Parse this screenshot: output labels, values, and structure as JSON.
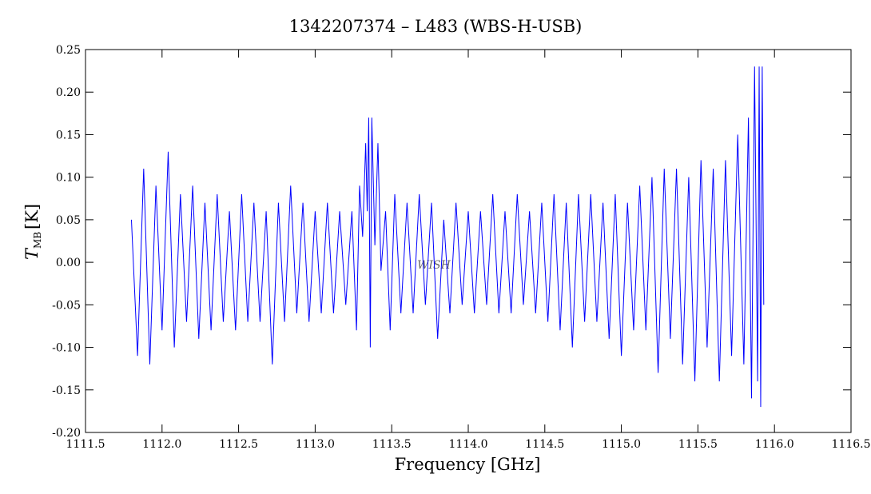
{
  "chart_data": {
    "type": "line",
    "title": "1342207374 – L483 (WBS-H-USB)",
    "xlabel": "Frequency [GHz]",
    "ylabel": {
      "main": "T",
      "sub": "MB",
      "unit": "[K]"
    },
    "watermark": "WISH",
    "xlim": [
      1111.5,
      1116.5
    ],
    "xticks": [
      1111.5,
      {
        "value": 1112,
        "label": "1112.0"
      },
      1112.5,
      {
        "value": 1113,
        "label": "1113.0"
      },
      1113.5,
      {
        "value": 1114,
        "label": "1114.0"
      },
      1114.5,
      {
        "value": 1115,
        "label": "1115.0"
      },
      1115.5,
      {
        "value": 1116,
        "label": "1116.0"
      },
      1116.5
    ],
    "ylim": [
      -0.2,
      0.25
    ],
    "yticks": [
      {
        "value": -0.2,
        "label": "-0.20"
      },
      -0.15,
      {
        "value": -0.1,
        "label": "-0.10"
      },
      -0.05,
      {
        "value": 0,
        "label": "0.00"
      },
      0.05,
      {
        "value": 0.1,
        "label": "0.10"
      },
      0.15,
      {
        "value": 0.2,
        "label": "0.20"
      },
      0.25
    ],
    "color": "#0000ff",
    "x": [
      1111.8,
      1111.84,
      1111.88,
      1111.92,
      1111.96,
      1112.0,
      1112.04,
      1112.08,
      1112.12,
      1112.16,
      1112.2,
      1112.24,
      1112.28,
      1112.32,
      1112.36,
      1112.4,
      1112.44,
      1112.48,
      1112.52,
      1112.56,
      1112.6,
      1112.64,
      1112.68,
      1112.72,
      1112.76,
      1112.8,
      1112.84,
      1112.88,
      1112.92,
      1112.96,
      1113.0,
      1113.04,
      1113.08,
      1113.12,
      1113.16,
      1113.2,
      1113.24,
      1113.27,
      1113.29,
      1113.31,
      1113.33,
      1113.34,
      1113.35,
      1113.36,
      1113.37,
      1113.39,
      1113.41,
      1113.43,
      1113.46,
      1113.49,
      1113.52,
      1113.56,
      1113.6,
      1113.64,
      1113.68,
      1113.72,
      1113.76,
      1113.8,
      1113.84,
      1113.88,
      1113.92,
      1113.96,
      1114.0,
      1114.04,
      1114.08,
      1114.12,
      1114.16,
      1114.2,
      1114.24,
      1114.28,
      1114.32,
      1114.36,
      1114.4,
      1114.44,
      1114.48,
      1114.52,
      1114.56,
      1114.6,
      1114.64,
      1114.68,
      1114.72,
      1114.76,
      1114.8,
      1114.84,
      1114.88,
      1114.92,
      1114.96,
      1115.0,
      1115.04,
      1115.08,
      1115.12,
      1115.16,
      1115.2,
      1115.24,
      1115.28,
      1115.32,
      1115.36,
      1115.4,
      1115.44,
      1115.48,
      1115.52,
      1115.56,
      1115.6,
      1115.64,
      1115.68,
      1115.72,
      1115.76,
      1115.8,
      1115.83,
      1115.85,
      1115.87,
      1115.89,
      1115.9,
      1115.91,
      1115.92,
      1115.93
    ],
    "values": [
      0.05,
      -0.11,
      0.11,
      -0.12,
      0.09,
      -0.08,
      0.13,
      -0.1,
      0.08,
      -0.07,
      0.09,
      -0.09,
      0.07,
      -0.08,
      0.08,
      -0.07,
      0.06,
      -0.08,
      0.08,
      -0.07,
      0.07,
      -0.07,
      0.06,
      -0.12,
      0.07,
      -0.07,
      0.09,
      -0.06,
      0.07,
      -0.07,
      0.06,
      -0.06,
      0.07,
      -0.06,
      0.06,
      -0.05,
      0.06,
      -0.08,
      0.09,
      0.03,
      0.14,
      0.06,
      0.17,
      -0.1,
      0.17,
      0.02,
      0.14,
      -0.01,
      0.06,
      -0.08,
      0.08,
      -0.06,
      0.07,
      -0.06,
      0.08,
      -0.05,
      0.07,
      -0.09,
      0.05,
      -0.06,
      0.07,
      -0.05,
      0.06,
      -0.06,
      0.06,
      -0.05,
      0.08,
      -0.06,
      0.06,
      -0.06,
      0.08,
      -0.05,
      0.06,
      -0.06,
      0.07,
      -0.07,
      0.08,
      -0.08,
      0.07,
      -0.1,
      0.08,
      -0.07,
      0.08,
      -0.07,
      0.07,
      -0.09,
      0.08,
      -0.11,
      0.07,
      -0.08,
      0.09,
      -0.08,
      0.1,
      -0.13,
      0.11,
      -0.09,
      0.11,
      -0.12,
      0.1,
      -0.14,
      0.12,
      -0.1,
      0.11,
      -0.14,
      0.12,
      -0.11,
      0.15,
      -0.12,
      0.17,
      -0.16,
      0.23,
      -0.14,
      0.23,
      -0.17,
      0.23,
      -0.05
    ]
  }
}
